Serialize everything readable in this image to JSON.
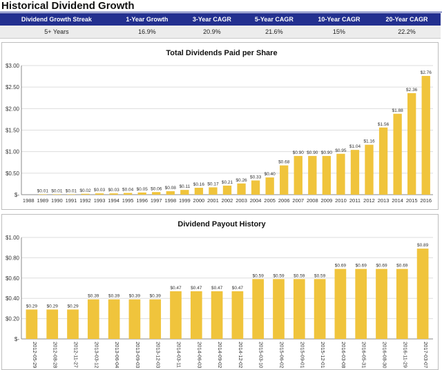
{
  "page": {
    "title": "Historical Dividend Growth"
  },
  "growth_table": {
    "headers": [
      "Dividend Growth Streak",
      "1-Year Growth",
      "3-Year CAGR",
      "5-Year CAGR",
      "10-Year CAGR",
      "20-Year CAGR"
    ],
    "values": [
      "5+ Years",
      "16.9%",
      "20.9%",
      "21.6%",
      "15%",
      "22.2%"
    ]
  },
  "colors": {
    "bar": "#f0c43c",
    "header_bg": "#23308f",
    "grid": "#dddddd"
  },
  "chart_data": [
    {
      "type": "bar",
      "title": "Total Dividends Paid per Share",
      "xlabel": "",
      "ylabel": "",
      "ylim": [
        0,
        3
      ],
      "yticks": [
        0,
        0.5,
        1,
        1.5,
        2,
        2.5,
        3
      ],
      "ytick_labels": [
        "$-",
        "$0.50",
        "$1.00",
        "$1.50",
        "$2.00",
        "$2.50",
        "$3.00"
      ],
      "grid": true,
      "categories": [
        "1988",
        "1989",
        "1990",
        "1991",
        "1992",
        "1993",
        "1994",
        "1995",
        "1996",
        "1997",
        "1998",
        "1999",
        "2000",
        "2001",
        "2002",
        "2003",
        "2004",
        "2005",
        "2006",
        "2007",
        "2008",
        "2009",
        "2010",
        "2011",
        "2012",
        "2013",
        "2014",
        "2015",
        "2016"
      ],
      "values": [
        0,
        0.01,
        0.01,
        0.01,
        0.02,
        0.03,
        0.03,
        0.04,
        0.05,
        0.06,
        0.08,
        0.11,
        0.16,
        0.17,
        0.21,
        0.26,
        0.33,
        0.4,
        0.68,
        0.9,
        0.9,
        0.9,
        0.95,
        1.04,
        1.16,
        1.56,
        1.88,
        2.36,
        2.76
      ],
      "data_labels": [
        "",
        "$0.01",
        "$0.01",
        "$0.01",
        "$0.02",
        "$0.03",
        "$0.03",
        "$0.04",
        "$0.05",
        "$0.06",
        "$0.08",
        "$0.11",
        "$0.16",
        "$0.17",
        "$0.21",
        "$0.26",
        "$0.33",
        "$0.40",
        "$0.68",
        "$0.90",
        "$0.90",
        "$0.90",
        "$0.95",
        "$1.04",
        "$1.16",
        "$1.56",
        "$1.88",
        "$2.36",
        "$2.76"
      ]
    },
    {
      "type": "bar",
      "title": "Dividend Payout History",
      "xlabel": "",
      "ylabel": "",
      "ylim": [
        0,
        1
      ],
      "yticks": [
        0,
        0.2,
        0.4,
        0.6,
        0.8,
        1.0
      ],
      "ytick_labels": [
        "$-",
        "$0.20",
        "$0.40",
        "$0.60",
        "$0.80",
        "$1.00"
      ],
      "grid": true,
      "categories": [
        "2012-05-29",
        "2012-08-28",
        "2012-11-27",
        "2013-03-12",
        "2013-06-04",
        "2013-09-03",
        "2013-12-03",
        "2014-03-11",
        "2014-06-03",
        "2014-09-02",
        "2014-12-02",
        "2015-03-10",
        "2015-06-02",
        "2015-09-01",
        "2015-12-01",
        "2016-03-08",
        "2016-05-31",
        "2016-08-30",
        "2016-11-29",
        "2017-03-07"
      ],
      "values": [
        0.29,
        0.29,
        0.29,
        0.39,
        0.39,
        0.39,
        0.39,
        0.47,
        0.47,
        0.47,
        0.47,
        0.59,
        0.59,
        0.59,
        0.59,
        0.69,
        0.69,
        0.69,
        0.69,
        0.89
      ],
      "data_labels": [
        "$0.29",
        "$0.29",
        "$0.29",
        "$0.39",
        "$0.39",
        "$0.39",
        "$0.39",
        "$0.47",
        "$0.47",
        "$0.47",
        "$0.47",
        "$0.59",
        "$0.59",
        "$0.59",
        "$0.59",
        "$0.69",
        "$0.69",
        "$0.69",
        "$0.69",
        "$0.89"
      ]
    }
  ]
}
